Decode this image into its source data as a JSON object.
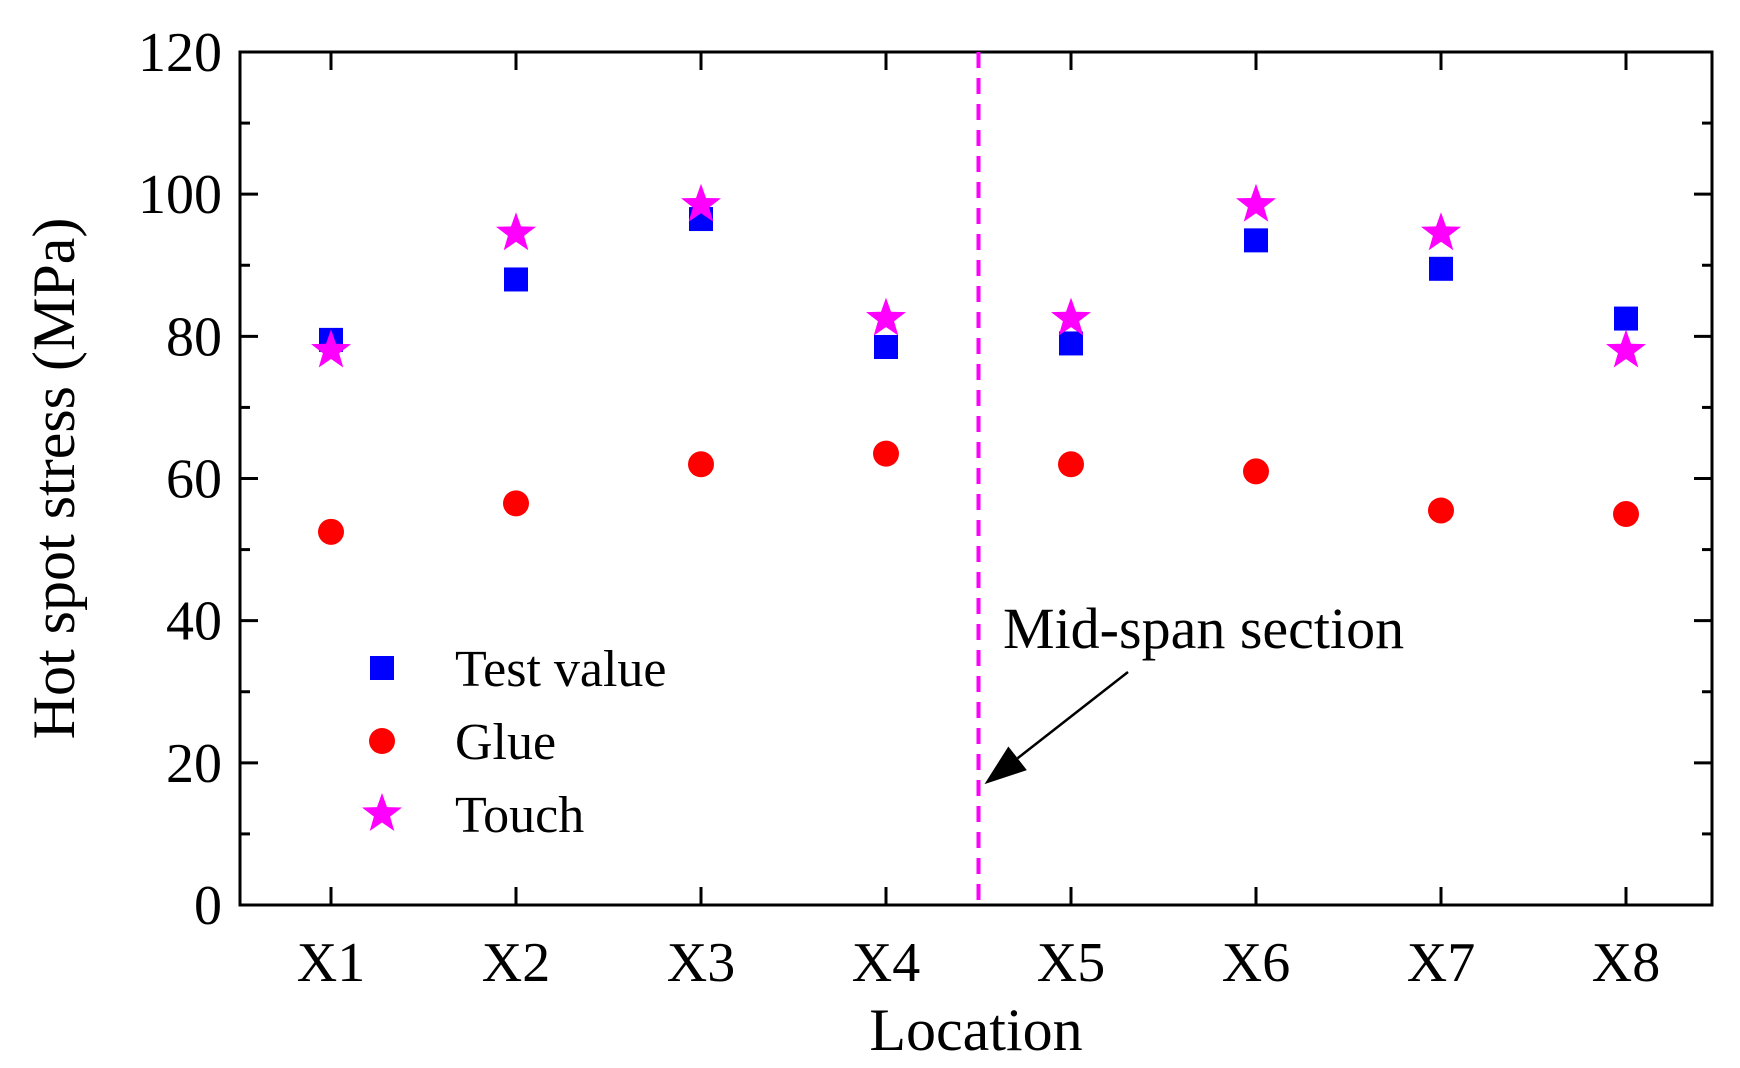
{
  "chart_data": {
    "type": "scatter",
    "title": "",
    "xlabel": "Location",
    "ylabel": "Hot spot stress (MPa)",
    "categories": [
      "X1",
      "X2",
      "X3",
      "X4",
      "X5",
      "X6",
      "X7",
      "X8"
    ],
    "ylim": [
      0,
      120
    ],
    "yticks": [
      "0",
      "20",
      "40",
      "60",
      "80",
      "100",
      "120"
    ],
    "series": [
      {
        "name": "Test value",
        "marker": "square",
        "color": "#0000FF",
        "values": [
          79.5,
          88,
          96.5,
          78.5,
          79,
          93.5,
          89.5,
          82.5
        ]
      },
      {
        "name": "Glue",
        "marker": "circle",
        "color": "#FF0000",
        "values": [
          52.5,
          56.5,
          62,
          63.5,
          62,
          61,
          55.5,
          55
        ]
      },
      {
        "name": "Touch",
        "marker": "star",
        "color": "#FF00FF",
        "values": [
          78,
          94.5,
          98.5,
          82.5,
          82.5,
          98.5,
          94.5,
          78
        ]
      }
    ],
    "annotation": {
      "text": "Mid-span section",
      "line_between": [
        "X4",
        "X5"
      ],
      "line_color": "#FF00FF",
      "arrow_target_y": 17
    },
    "legend_position": "bottom-left",
    "grid": false
  }
}
